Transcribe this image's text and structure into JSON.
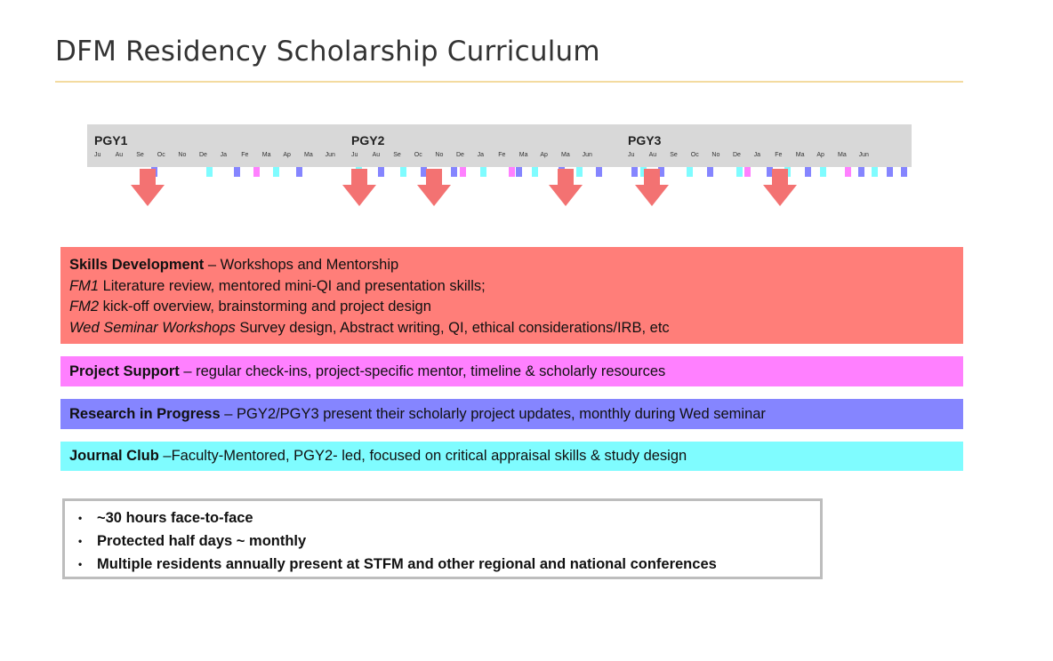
{
  "title": "DFM Residency Scholarship Curriculum",
  "timeline": {
    "pgy": [
      "PGY1",
      "PGY2",
      "PGY3"
    ],
    "months": [
      "Ju",
      "Au",
      "Se",
      "Oc",
      "No",
      "De",
      "Ja",
      "Fe",
      "Ma",
      "Ap",
      "Ma",
      "Jun"
    ],
    "colors": {
      "arrow": "#f37272",
      "skills": "#ff7e79",
      "support": "#ff80ff",
      "rip": "#8585ff",
      "jc": "#7ffcff"
    }
  },
  "bands": {
    "skills": {
      "heading": "Skills Development",
      "heading_rest": " – Workshops and Mentorship",
      "line1_em": "FM1",
      "line1_rest": " Literature review, mentored mini-QI and presentation skills;",
      "line2_em": "FM2",
      "line2_rest": " kick-off overview, brainstorming and project design",
      "line3_em": "Wed Seminar Workshops",
      "line3_rest": " Survey design, Abstract writing, QI, ethical considerations/IRB, etc"
    },
    "support": {
      "heading": "Project Support",
      "rest": " – regular check-ins, project-specific mentor, timeline & scholarly resources"
    },
    "rip": {
      "heading": "Research in Progress",
      "rest": " – PGY2/PGY3 present their scholarly project updates, monthly during Wed seminar"
    },
    "jc": {
      "heading": "Journal Club",
      "rest": " –Faculty-Mentored, PGY2- led, focused on critical appraisal skills & study design"
    }
  },
  "bullets": [
    "~30 hours face-to-face",
    "Protected half days ~ monthly",
    "Multiple residents annually present at STFM and other regional and national conferences"
  ]
}
